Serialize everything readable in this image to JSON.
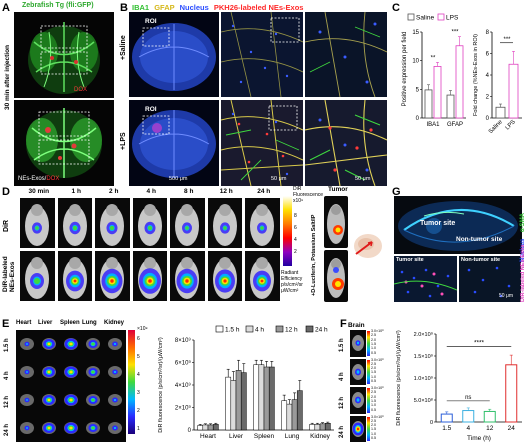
{
  "panels": {
    "A": {
      "letter": "A",
      "title_green": "Zebrafish Tg (fli:GFP)",
      "side_label": "30 min after injection",
      "top_tag": "DOX",
      "bottom_tag_1": "NEs-Exos/",
      "bottom_tag_2": "DOX"
    },
    "B": {
      "letter": "B",
      "legend": [
        {
          "text": "IBA1",
          "color": "#3fd93f"
        },
        {
          "text": "GFAP",
          "color": "#e8d23a"
        },
        {
          "text": "Nucleus",
          "color": "#2a4cff"
        },
        {
          "text": "PKH26-labeled NEs-Exos",
          "color": "#ff2a2a"
        }
      ],
      "row1": "+Saline",
      "row2": "+LPS",
      "roi": "ROI",
      "scale_500": "500 μm",
      "scale_50a": "50 μm",
      "scale_50b": "50 μm"
    },
    "D": {
      "letter": "D",
      "times": [
        "30 min",
        "1 h",
        "2 h",
        "4 h",
        "8 h",
        "12 h",
        "24 h"
      ],
      "tumor": "Tumor",
      "row1": "DiR",
      "row2a": "DiR-labeled",
      "row2b": "NEs-Exos",
      "cb_title_1": "DiR",
      "cb_title_2": "Fluorescence",
      "cb_exp": "x10⁹",
      "cb_ticks": [
        "8",
        "6",
        "4",
        "2"
      ],
      "cb_label": [
        "Radiant",
        "Efficiency",
        "p/s/cm²/sr",
        "μW/cm²"
      ],
      "luciferin": "+D-Luciferin, Potassium Salt/IP"
    },
    "E": {
      "letter": "E",
      "organs": [
        "Heart",
        "Liver",
        "Spleen",
        "Lung",
        "Kidney"
      ],
      "rows": [
        "1.5 h",
        "4 h",
        "12 h",
        "24 h"
      ],
      "cb_exp": "×10⁹",
      "cb_ticks": [
        "6",
        "5",
        "4",
        "3",
        "2",
        "1"
      ]
    },
    "F": {
      "letter": "F",
      "brain_title": "Brain",
      "rows": [
        "1.5 h",
        "4 h",
        "12 h",
        "24 h"
      ],
      "cb_ticks": [
        "3.0×10⁸",
        "2.5",
        "2.0",
        "1.5",
        "1.0",
        "0.5"
      ],
      "cb_ticks_b": [
        "3.0×10⁸",
        "2.5",
        "2.0",
        "1.5",
        "1.0",
        "0.5"
      ],
      "cb_ticks_c": [
        "3.0×10⁸",
        "2.5",
        "2.0",
        "1.5",
        "1.0",
        "0.5"
      ],
      "cb_ticks_d": [
        "3.0×10⁸",
        "2.5",
        "2.0",
        "1.5",
        "1.0",
        "0.5"
      ]
    },
    "G": {
      "letter": "G",
      "tumor_site": "Tumor site",
      "non_tumor": "Non-tumor site",
      "tumor_site_2": "Tumor site",
      "non_tumor_2": "Non-tumor site",
      "side_1": "α-SMA",
      "side_2": "Nucleus",
      "side_3": "DiR-labeled NEs-Exos",
      "scale": "50 μm"
    }
  },
  "chart_data": [
    {
      "panel": "C-left",
      "type": "bar",
      "categories": [
        "IBA1",
        "GFAP"
      ],
      "series": [
        {
          "name": "Saline",
          "values": [
            4.9,
            4.0
          ],
          "errors": [
            0.9,
            0.8
          ]
        },
        {
          "name": "LPS",
          "values": [
            9.0,
            12.6
          ],
          "errors": [
            0.7,
            1.6
          ]
        }
      ],
      "ylabel": "Positive expression per field",
      "ylim": [
        0,
        15
      ],
      "yticks": [
        0,
        5,
        10,
        15
      ],
      "significance": [
        "**",
        "***"
      ],
      "legend_position": "top"
    },
    {
      "panel": "C-right",
      "type": "bar",
      "categories": [
        "Saline",
        "LPS"
      ],
      "values": [
        1.0,
        5.0
      ],
      "errors": [
        0.3,
        1.2
      ],
      "ylabel": "Fold change (%NEs-Exos in ROI)",
      "ylim": [
        0,
        8
      ],
      "yticks": [
        0,
        2,
        4,
        6,
        8
      ],
      "significance": [
        "***"
      ]
    },
    {
      "panel": "E",
      "type": "bar",
      "categories": [
        "Heart",
        "Liver",
        "Spleen",
        "Lung",
        "Kidney"
      ],
      "series": [
        {
          "name": "1.5 h",
          "values": [
            0.4,
            4.7,
            5.8,
            2.6,
            0.5
          ],
          "errors": [
            0.1,
            0.7,
            0.4,
            0.5,
            0.1
          ]
        },
        {
          "name": "4 h",
          "values": [
            0.45,
            4.4,
            5.8,
            2.3,
            0.5
          ],
          "errors": [
            0.1,
            0.8,
            0.4,
            0.4,
            0.1
          ]
        },
        {
          "name": "12 h",
          "values": [
            0.45,
            5.3,
            5.6,
            2.7,
            0.55
          ],
          "errors": [
            0.1,
            0.9,
            0.5,
            0.6,
            0.1
          ]
        },
        {
          "name": "24 h",
          "values": [
            0.5,
            5.1,
            5.6,
            3.5,
            0.6
          ],
          "errors": [
            0.1,
            0.8,
            0.5,
            0.9,
            0.1
          ]
        }
      ],
      "ylabel": "DiR fluorescence (p/s/cm²/sr)/(μW/cm²)",
      "ylim": [
        0,
        8
      ],
      "yticks": [
        "0",
        "2×10⁹",
        "4×10⁹",
        "6×10⁹",
        "8×10⁹"
      ],
      "ytick_values": [
        0,
        2,
        4,
        6,
        8
      ],
      "legend_position": "top"
    },
    {
      "panel": "F",
      "type": "bar",
      "categories": [
        "1.5",
        "4",
        "12",
        "24"
      ],
      "values": [
        0.18,
        0.26,
        0.24,
        1.3
      ],
      "errors": [
        0.05,
        0.06,
        0.05,
        0.22
      ],
      "colors": [
        "#2b5fd9",
        "#3bb0e0",
        "#2fbf6a",
        "#e02d2d"
      ],
      "xlabel": "Time (h)",
      "ylabel": "DiR fluorescence (p/s/cm²/sr)/(μW/cm²)",
      "ylim": [
        0,
        2
      ],
      "yticks": [
        "0",
        "5.0×10⁸",
        "1.0×10⁹",
        "1.5×10⁹",
        "2.0×10⁹"
      ],
      "ytick_values": [
        0,
        0.5,
        1.0,
        1.5,
        2.0
      ],
      "significance": [
        "ns",
        "****"
      ]
    }
  ]
}
